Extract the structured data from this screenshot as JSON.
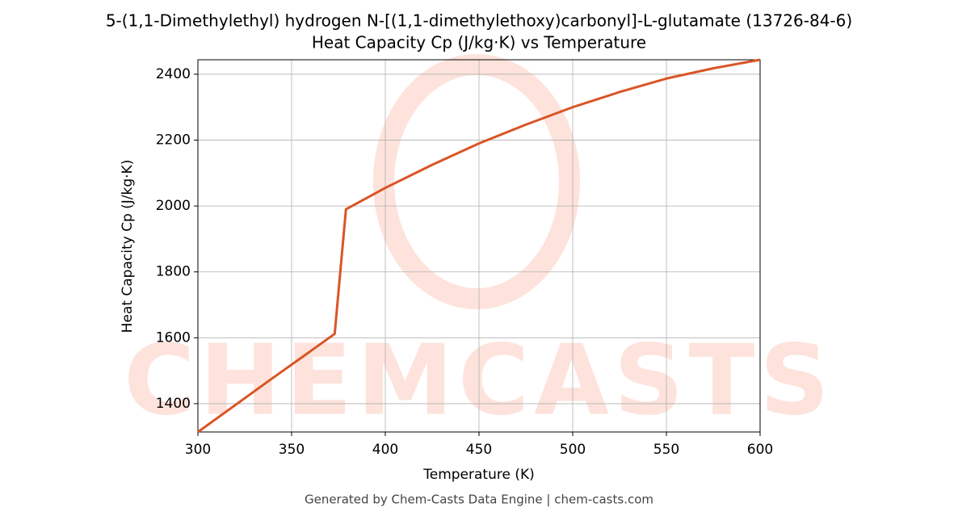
{
  "chart_data": {
    "type": "line",
    "title": "5-(1,1-Dimethylethyl) hydrogen N-[(1,1-dimethylethoxy)carbonyl]-L-glutamate (13726-84-6)",
    "subtitle": "Heat Capacity Cp (J/kg·K) vs Temperature",
    "x_label": "Temperature (K)",
    "y_label": "Heat Capacity Cp (J/kg·K)",
    "watermark": "CHEMCASTS",
    "footer": "Generated by Chem-Casts Data Engine | chem-casts.com",
    "x": [
      300,
      320,
      340,
      360,
      373,
      379,
      400,
      425,
      450,
      475,
      500,
      525,
      550,
      575,
      600
    ],
    "series": [
      {
        "name": "Cp",
        "color": "#d95525",
        "values": [
          1314,
          1396,
          1478,
          1559,
          1612,
          1990,
          2055,
          2125,
          2190,
          2247,
          2300,
          2346,
          2387,
          2418,
          2444
        ]
      }
    ],
    "xlim": [
      300,
      600
    ],
    "ylim": [
      1314,
      2444
    ],
    "xticks": [
      300,
      350,
      400,
      450,
      500,
      550,
      600
    ],
    "yticks": [
      1400,
      1600,
      1800,
      2000,
      2200,
      2400
    ],
    "grid": true
  }
}
